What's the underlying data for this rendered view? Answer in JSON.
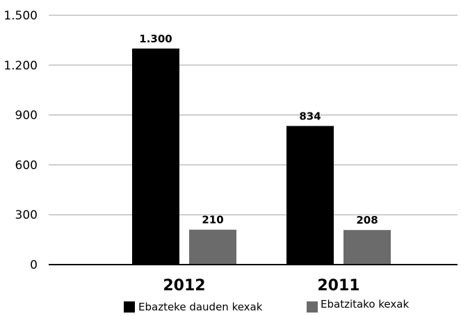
{
  "chart_data": {
    "type": "bar",
    "categories": [
      "2012",
      "2011"
    ],
    "series": [
      {
        "name": "Ebazteke dauden kexak",
        "values": [
          1300,
          834
        ],
        "labels": [
          "1.300",
          "834"
        ],
        "color": "#000000"
      },
      {
        "name": "Ebatzitako kexak",
        "values": [
          210,
          208
        ],
        "labels": [
          "210",
          "208"
        ],
        "color": "#6b6b6b"
      }
    ],
    "yticks": [
      {
        "value": 0,
        "label": "0"
      },
      {
        "value": 300,
        "label": "300"
      },
      {
        "value": 600,
        "label": "600"
      },
      {
        "value": 900,
        "label": "900"
      },
      {
        "value": 1200,
        "label": "1.200"
      },
      {
        "value": 1500,
        "label": "1.500"
      }
    ],
    "ylim": [
      0,
      1500
    ],
    "grid": true,
    "legend": "bottom"
  }
}
